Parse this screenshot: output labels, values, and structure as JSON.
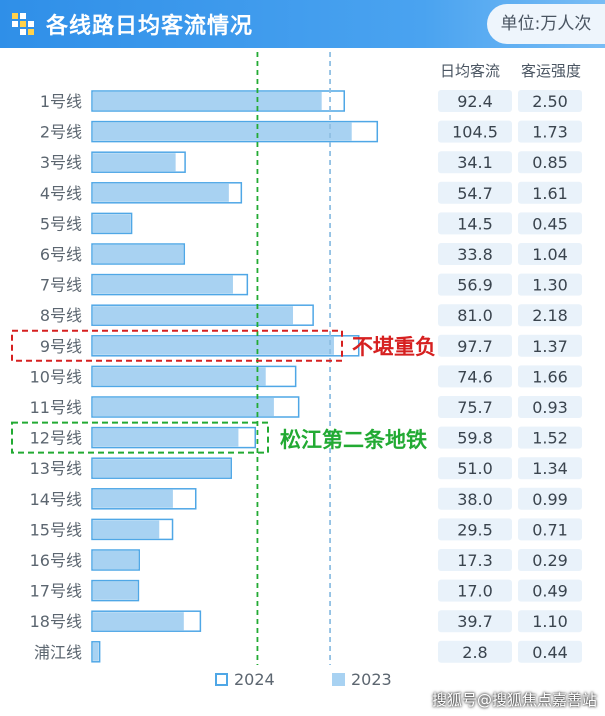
{
  "header": {
    "title": "各线路日均客流情况",
    "unit": "单位:万人次",
    "logo_icon": "checker-grid-icon"
  },
  "columns": {
    "flow": "日均客流",
    "intensity": "客运强度"
  },
  "annotations": {
    "overloaded": "不堪重负",
    "songjiang": "松江第二条地铁"
  },
  "watermark": "搜狐号@搜狐焦点嘉善站",
  "colors": {
    "header": "#2f8fe8",
    "bar_2023_fill": "#a8d2f2",
    "bar_2024_fill": "#ffffff",
    "bar_2024_stroke": "#4fa7e6",
    "highlight_red": "#d62020",
    "highlight_green": "#22aa33",
    "value_bg": "#e9f2fa"
  },
  "chart_data": {
    "type": "bar",
    "orientation": "horizontal",
    "categories": [
      "1号线",
      "2号线",
      "3号线",
      "4号线",
      "5号线",
      "6号线",
      "7号线",
      "8号线",
      "9号线",
      "10号线",
      "11号线",
      "12号线",
      "13号线",
      "14号线",
      "15号线",
      "16号线",
      "17号线",
      "18号线",
      "浦江线"
    ],
    "series": [
      {
        "name": "2024",
        "values": [
          92.4,
          104.5,
          34.1,
          54.7,
          14.5,
          33.8,
          56.9,
          81.0,
          97.7,
          74.6,
          75.7,
          59.8,
          51.0,
          38.0,
          29.5,
          17.3,
          17.0,
          39.7,
          2.8
        ]
      },
      {
        "name": "2023",
        "values": [
          84.5,
          95.5,
          31.0,
          50.5,
          14.5,
          33.8,
          52.0,
          74.0,
          89.0,
          64.0,
          67.0,
          54.0,
          51.0,
          30.0,
          25.0,
          17.3,
          17.0,
          34.0,
          2.8
        ]
      }
    ],
    "columns": [
      {
        "name": "日均客流",
        "values": [
          "92.4",
          "104.5",
          "34.1",
          "54.7",
          "14.5",
          "33.8",
          "56.9",
          "81.0",
          "97.7",
          "74.6",
          "75.7",
          "59.8",
          "51.0",
          "38.0",
          "29.5",
          "17.3",
          "17.0",
          "39.7",
          "2.8"
        ]
      },
      {
        "name": "客运强度",
        "values": [
          "2.50",
          "1.73",
          "0.85",
          "1.61",
          "0.45",
          "1.04",
          "1.30",
          "2.18",
          "1.37",
          "1.66",
          "0.93",
          "1.52",
          "1.34",
          "0.99",
          "0.71",
          "0.29",
          "0.49",
          "1.10",
          "0.44"
        ]
      }
    ],
    "legend": [
      "2024",
      "2023"
    ],
    "legend_position": "bottom",
    "reference_lines": [
      {
        "series": "2024",
        "style": "dashed",
        "color": "#22aa33",
        "value": 60.6
      },
      {
        "series": "2023",
        "style": "dashed",
        "color": "#8fbfe3",
        "value": 87.2
      }
    ],
    "highlights": [
      {
        "category": "9号线",
        "color": "red"
      },
      {
        "category": "12号线",
        "color": "green"
      }
    ]
  }
}
